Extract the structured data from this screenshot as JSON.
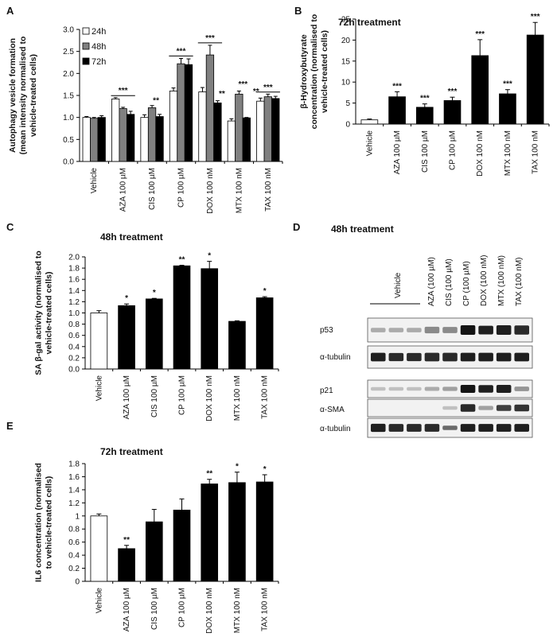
{
  "categories": [
    "Vehicle",
    "AZA 100 µM",
    "CIS 100 µM",
    "CP 100 µM",
    "DOX 100 nM",
    "MTX 100 nM",
    "TAX 100 nM"
  ],
  "colors": {
    "white": "#ffffff",
    "grey": "#808080",
    "black": "#000000"
  },
  "chart_data": [
    {
      "id": "A",
      "type": "bar",
      "categories": [
        "Vehicle",
        "AZA 100 µM",
        "CIS 100 µM",
        "CP 100 µM",
        "DOX 100 nM",
        "MTX 100 nM",
        "TAX 100 nM"
      ],
      "series": [
        {
          "name": "24h",
          "color": "#ffffff",
          "values": [
            1.0,
            1.42,
            1.0,
            1.6,
            1.58,
            0.92,
            1.37
          ],
          "errors": [
            0.02,
            0.03,
            0.06,
            0.07,
            0.1,
            0.05,
            0.07
          ]
        },
        {
          "name": "48h",
          "color": "#808080",
          "values": [
            0.98,
            1.2,
            1.22,
            2.22,
            2.42,
            1.53,
            1.47
          ],
          "errors": [
            0.02,
            0.03,
            0.05,
            0.12,
            0.22,
            0.07,
            0.06
          ]
        },
        {
          "name": "72h",
          "color": "#000000",
          "values": [
            1.0,
            1.07,
            1.02,
            2.2,
            1.33,
            0.99,
            1.43
          ],
          "errors": [
            0.04,
            0.07,
            0.05,
            0.13,
            0.05,
            0.01,
            0.05
          ]
        }
      ],
      "ylabel": "Autophagy vesicle formation (mean intensity normalised to vehicle-treated cells)",
      "ylim": [
        0,
        3.0
      ],
      "yticks": [
        "0.0",
        "0.5",
        "1.0",
        "1.5",
        "2.0",
        "2.5",
        "3.0"
      ],
      "annotations": [
        "***",
        "**",
        "***",
        "***",
        "**",
        "***",
        "**",
        "***"
      ],
      "legend": "top-left"
    },
    {
      "id": "B",
      "type": "bar",
      "title": "72h treatment",
      "categories": [
        "Vehicle",
        "AZA 100 µM",
        "CIS 100 µM",
        "CP 100 µM",
        "DOX 100 nM",
        "MTX 100 nM",
        "TAX 100 nM"
      ],
      "values": [
        1.0,
        6.5,
        4.0,
        5.6,
        16.3,
        7.2,
        21.2
      ],
      "errors": [
        0.2,
        1.2,
        0.8,
        0.8,
        3.8,
        1.0,
        3.0
      ],
      "colors": [
        "#ffffff",
        "#000000",
        "#000000",
        "#000000",
        "#000000",
        "#000000",
        "#000000"
      ],
      "stars": [
        "",
        "***",
        "***",
        "***",
        "***",
        "***",
        "***"
      ],
      "ylabel": "β-Hydroxybutyrate concentration (normalised to vehicle-treated cells)",
      "ylim": [
        0,
        25
      ],
      "yticks": [
        "0",
        "5",
        "10",
        "15",
        "20",
        "25"
      ]
    },
    {
      "id": "C",
      "type": "bar",
      "title": "48h treatment",
      "categories": [
        "Vehicle",
        "AZA 100 µM",
        "CIS 100 µM",
        "CP 100 µM",
        "DOX 100 nM",
        "MTX 100 nM",
        "TAX 100 nM"
      ],
      "values": [
        1.0,
        1.13,
        1.25,
        1.84,
        1.79,
        0.85,
        1.27
      ],
      "errors": [
        0.04,
        0.03,
        0.01,
        0.01,
        0.13,
        0.01,
        0.02
      ],
      "colors": [
        "#ffffff",
        "#000000",
        "#000000",
        "#000000",
        "#000000",
        "#000000",
        "#000000"
      ],
      "stars": [
        "",
        "*",
        "*",
        "**",
        "*",
        "",
        "*"
      ],
      "ylabel": "SA β-gal activity (normalised to vehicle-treated cells)",
      "ylim": [
        0,
        2.0
      ],
      "yticks": [
        "0.0",
        "0.2",
        "0.4",
        "0.6",
        "0.8",
        "1.0",
        "1.2",
        "1.4",
        "1.6",
        "1.8",
        "2.0"
      ]
    },
    {
      "id": "E",
      "type": "bar",
      "title": "72h treatment",
      "categories": [
        "Vehicle",
        "AZA 100 µM",
        "CIS 100 µM",
        "CP 100 µM",
        "DOX 100 nM",
        "MTX 100 nM",
        "TAX 100 nM"
      ],
      "values": [
        1.0,
        0.5,
        0.91,
        1.09,
        1.49,
        1.51,
        1.52
      ],
      "errors": [
        0.03,
        0.05,
        0.19,
        0.17,
        0.07,
        0.16,
        0.11
      ],
      "colors": [
        "#ffffff",
        "#000000",
        "#000000",
        "#000000",
        "#000000",
        "#000000",
        "#000000"
      ],
      "stars": [
        "",
        "**",
        "",
        "",
        "**",
        "*",
        "*"
      ],
      "ylabel": "IL6 concentration (normalised to vehicle-treated cells)",
      "ylim": [
        0,
        1.8
      ],
      "yticks": [
        "0",
        "0.2",
        "0.4",
        "0.6",
        "0.8",
        "1",
        "1.2",
        "1.4",
        "1.6",
        "1.8"
      ]
    }
  ],
  "panelD": {
    "letter": "D",
    "title": "48h treatment",
    "vehicle_label": "Vehicle",
    "lanes": [
      "AZA (100 µM)",
      "CIS (100 µM)",
      "CP (100 µM)",
      "DOX (100 nM)",
      "MTX (100 nM)",
      "TAX (100 nM)"
    ],
    "blots": [
      "p53",
      "α-tubulin",
      "p21",
      "α-SMA",
      "α-tubulin"
    ]
  },
  "letters": [
    "A",
    "B",
    "C",
    "E"
  ]
}
